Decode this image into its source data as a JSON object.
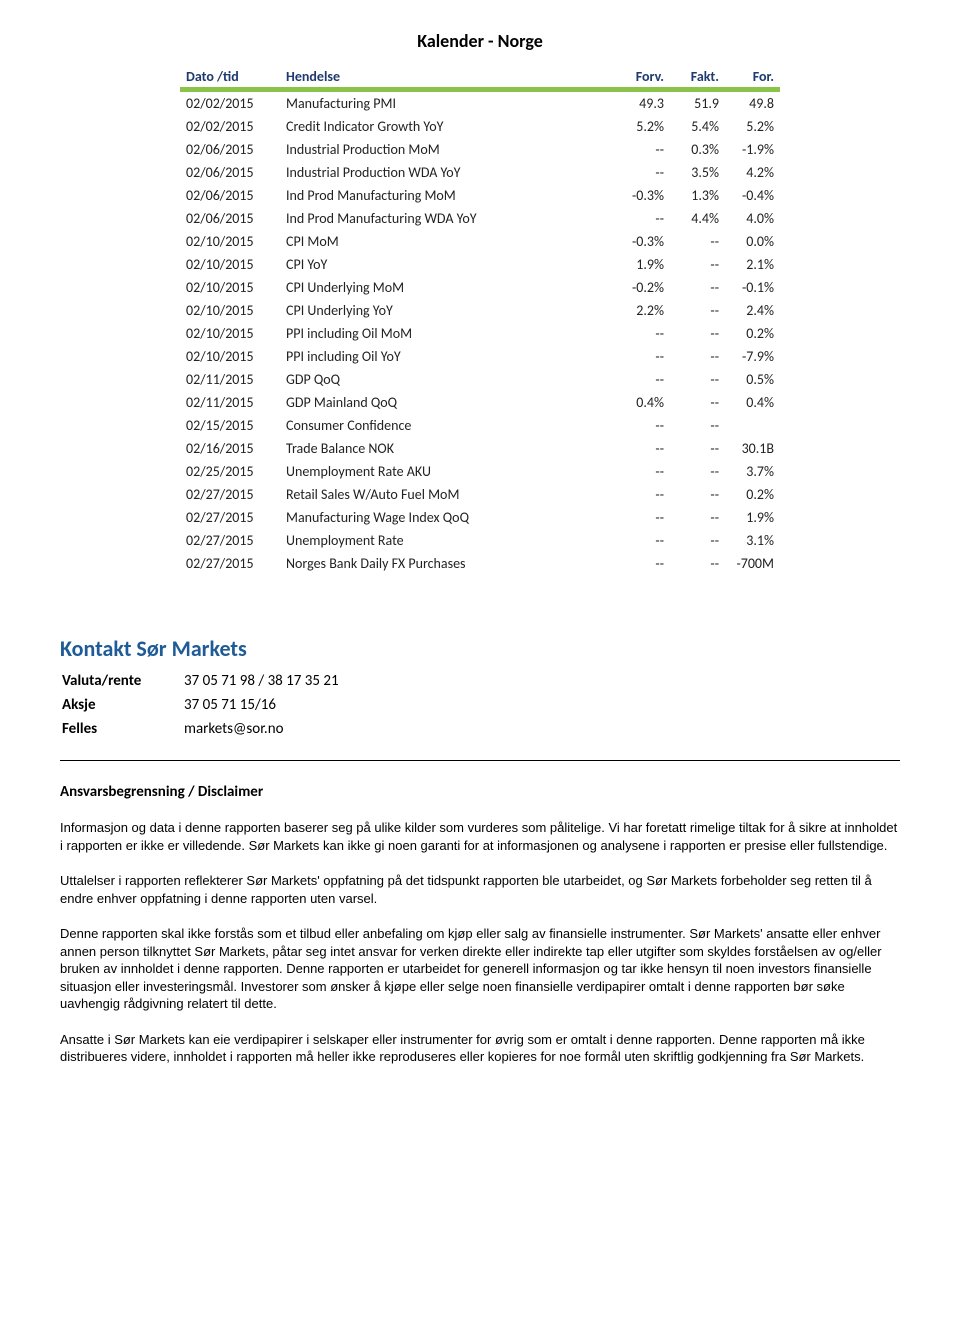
{
  "title": "Kalender - Norge",
  "columns": [
    "Dato /tid",
    "Hendelse",
    "Forv.",
    "Fakt.",
    "For."
  ],
  "rows": [
    [
      "02/02/2015",
      "Manufacturing PMI",
      "49.3",
      "51.9",
      "49.8"
    ],
    [
      "02/02/2015",
      "Credit Indicator Growth YoY",
      "5.2%",
      "5.4%",
      "5.2%"
    ],
    [
      "02/06/2015",
      "Industrial Production MoM",
      "--",
      "0.3%",
      "-1.9%"
    ],
    [
      "02/06/2015",
      "Industrial Production WDA YoY",
      "--",
      "3.5%",
      "4.2%"
    ],
    [
      "02/06/2015",
      "Ind Prod Manufacturing MoM",
      "-0.3%",
      "1.3%",
      "-0.4%"
    ],
    [
      "02/06/2015",
      "Ind Prod Manufacturing WDA YoY",
      "--",
      "4.4%",
      "4.0%"
    ],
    [
      "02/10/2015",
      "CPI MoM",
      "-0.3%",
      "--",
      "0.0%"
    ],
    [
      "02/10/2015",
      "CPI YoY",
      "1.9%",
      "--",
      "2.1%"
    ],
    [
      "02/10/2015",
      "CPI Underlying MoM",
      "-0.2%",
      "--",
      "-0.1%"
    ],
    [
      "02/10/2015",
      "CPI Underlying YoY",
      "2.2%",
      "--",
      "2.4%"
    ],
    [
      "02/10/2015",
      "PPI including Oil MoM",
      "--",
      "--",
      "0.2%"
    ],
    [
      "02/10/2015",
      "PPI including Oil YoY",
      "--",
      "--",
      "-7.9%"
    ],
    [
      "02/11/2015",
      "GDP QoQ",
      "--",
      "--",
      "0.5%"
    ],
    [
      "02/11/2015",
      "GDP Mainland QoQ",
      "0.4%",
      "--",
      "0.4%"
    ],
    [
      "02/15/2015",
      "Consumer Confidence",
      "--",
      "--",
      ""
    ],
    [
      "02/16/2015",
      "Trade Balance NOK",
      "--",
      "--",
      "30.1B"
    ],
    [
      "02/25/2015",
      "Unemployment Rate AKU",
      "--",
      "--",
      "3.7%"
    ],
    [
      "02/27/2015",
      "Retail Sales W/Auto Fuel MoM",
      "--",
      "--",
      "0.2%"
    ],
    [
      "02/27/2015",
      "Manufacturing Wage Index QoQ",
      "--",
      "--",
      "1.9%"
    ],
    [
      "02/27/2015",
      "Unemployment Rate",
      "--",
      "--",
      "3.1%"
    ],
    [
      "02/27/2015",
      "Norges Bank Daily FX Purchases",
      "--",
      "--",
      "-700M"
    ]
  ],
  "contact": {
    "heading": "Kontakt Sør Markets",
    "rows": [
      [
        "Valuta/rente",
        "37 05 71 98 / 38 17 35 21"
      ],
      [
        "Aksje",
        "37 05 71 15/16"
      ],
      [
        "Felles",
        "markets@sor.no"
      ]
    ]
  },
  "disclaimer_heading": "Ansvarsbegrensning / Disclaimer",
  "disclaimer": [
    "Informasjon og data i denne rapporten baserer seg på ulike kilder som vurderes som pålitelige. Vi har foretatt rimelige tiltak for å sikre at innholdet i rapporten er ikke er villedende. Sør Markets kan ikke gi noen garanti for at informasjonen og analysene i rapporten er presise eller fullstendige.",
    "Uttalelser i rapporten reflekterer Sør Markets' oppfatning på det tidspunkt rapporten ble utarbeidet, og Sør Markets forbeholder seg retten til å endre enhver oppfatning i denne rapporten uten varsel.",
    "Denne rapporten skal ikke forstås som et tilbud eller anbefaling om kjøp eller salg av finansielle instrumenter. Sør Markets' ansatte eller enhver annen person tilknyttet Sør Markets, påtar seg intet ansvar for verken direkte eller indirekte tap eller utgifter som skyldes forståelsen av og/eller bruken av innholdet i denne rapporten. Denne rapporten er utarbeidet for generell informasjon og tar ikke hensyn til noen investors finansielle situasjon eller investeringsmål. Investorer som ønsker å kjøpe eller selge noen finansielle verdipapirer omtalt i denne rapporten bør søke uavhengig rådgivning relatert til dette.",
    "Ansatte i Sør Markets kan eie verdipapirer i selskaper eller instrumenter for øvrig som er omtalt i denne rapporten. Denne rapporten må ikke distribueres videre, innholdet i rapporten må heller ikke reproduseres eller kopieres for noe formål uten skriftlig godkjenning fra Sør Markets."
  ]
}
